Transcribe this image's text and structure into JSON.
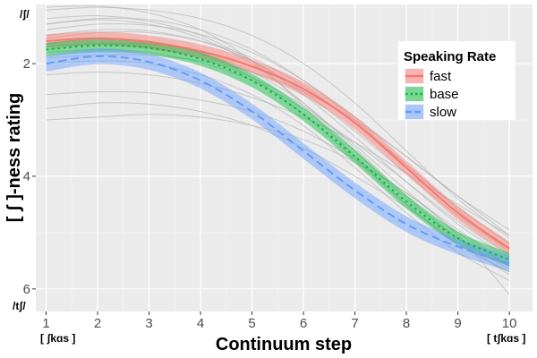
{
  "chart_data": {
    "type": "line",
    "xlabel": "Continuum step",
    "ylabel": "[ ʃ ]-ness rating",
    "xlim": [
      0.8,
      10.45
    ],
    "ylim": [
      0.95,
      6.4
    ],
    "y_reversed": true,
    "grid": true,
    "x_ticks": [
      1,
      2,
      3,
      4,
      5,
      6,
      7,
      8,
      9,
      10
    ],
    "y_ticks": [
      2,
      4,
      6
    ],
    "x_end_labels": {
      "left": "[ ʃkɑs ]",
      "right": "[ tʃkɑs ]"
    },
    "y_end_labels": {
      "top": "/ʃ/",
      "bottom": "/tʃ/"
    },
    "legend": {
      "title": "Speaking Rate",
      "placement": "top-right",
      "entries": [
        "fast",
        "base",
        "slow"
      ]
    },
    "x": [
      1,
      2,
      3,
      4,
      5,
      6,
      7,
      8,
      9,
      10
    ],
    "series": [
      {
        "name": "fast",
        "color": "#F8766D",
        "dash": "solid",
        "values": [
          1.6,
          1.55,
          1.62,
          1.78,
          2.05,
          2.45,
          3.05,
          3.85,
          4.65,
          5.28
        ],
        "band": 0.12
      },
      {
        "name": "base",
        "color": "#00BA38",
        "dash": "dotted",
        "values": [
          1.75,
          1.68,
          1.72,
          1.92,
          2.3,
          2.9,
          3.65,
          4.45,
          5.1,
          5.48
        ],
        "band": 0.12
      },
      {
        "name": "slow",
        "color": "#619CFF",
        "dash": "dashed",
        "values": [
          2.0,
          1.87,
          1.97,
          2.3,
          2.85,
          3.55,
          4.25,
          4.85,
          5.25,
          5.55
        ],
        "band": 0.14
      }
    ],
    "individual_curves": [
      [
        1.2,
        1.15,
        1.25,
        1.5,
        1.95,
        2.55,
        3.3,
        4.1,
        4.85,
        5.45
      ],
      [
        1.3,
        1.2,
        1.22,
        1.4,
        1.75,
        2.3,
        3.0,
        3.8,
        4.55,
        5.2
      ],
      [
        1.4,
        1.3,
        1.32,
        1.48,
        1.8,
        2.3,
        2.95,
        3.65,
        4.35,
        4.95
      ],
      [
        1.05,
        1.0,
        1.05,
        1.2,
        1.5,
        2.0,
        2.7,
        3.55,
        4.4,
        5.1
      ],
      [
        1.5,
        1.4,
        1.42,
        1.6,
        1.95,
        2.5,
        3.2,
        3.95,
        4.7,
        5.3
      ],
      [
        1.8,
        1.75,
        1.8,
        1.98,
        2.3,
        2.8,
        3.4,
        4.1,
        4.8,
        5.4
      ],
      [
        2.2,
        2.15,
        2.2,
        2.35,
        2.6,
        2.95,
        3.4,
        3.95,
        4.5,
        5.05
      ],
      [
        2.55,
        2.5,
        2.52,
        2.65,
        2.85,
        3.2,
        3.7,
        4.3,
        4.95,
        5.6
      ],
      [
        2.8,
        2.7,
        2.72,
        2.85,
        3.1,
        3.5,
        4.0,
        4.55,
        5.15,
        5.75
      ],
      [
        3.0,
        2.95,
        2.9,
        2.95,
        3.1,
        3.35,
        3.75,
        4.3,
        5.05,
        6.1
      ],
      [
        1.65,
        1.55,
        1.6,
        1.82,
        2.25,
        2.9,
        3.7,
        4.5,
        5.2,
        5.7
      ],
      [
        1.3,
        1.22,
        1.3,
        1.55,
        2.0,
        2.7,
        3.55,
        4.4,
        5.1,
        5.6
      ],
      [
        1.0,
        0.98,
        1.1,
        1.4,
        1.95,
        2.75,
        3.65,
        4.5,
        5.2,
        5.7
      ],
      [
        1.9,
        1.85,
        1.85,
        1.95,
        2.15,
        2.5,
        3.0,
        3.65,
        4.35,
        5.05
      ],
      [
        1.7,
        1.65,
        1.7,
        1.9,
        2.25,
        2.75,
        3.45,
        4.25,
        5.0,
        5.6
      ],
      [
        2.0,
        1.95,
        2.0,
        2.2,
        2.55,
        3.1,
        3.85,
        4.65,
        5.35,
        5.85
      ],
      [
        1.55,
        1.45,
        1.45,
        1.6,
        1.9,
        2.4,
        3.05,
        3.8,
        4.6,
        5.35
      ],
      [
        1.75,
        1.65,
        1.65,
        1.8,
        2.15,
        2.7,
        3.5,
        4.35,
        5.1,
        5.65
      ]
    ]
  }
}
